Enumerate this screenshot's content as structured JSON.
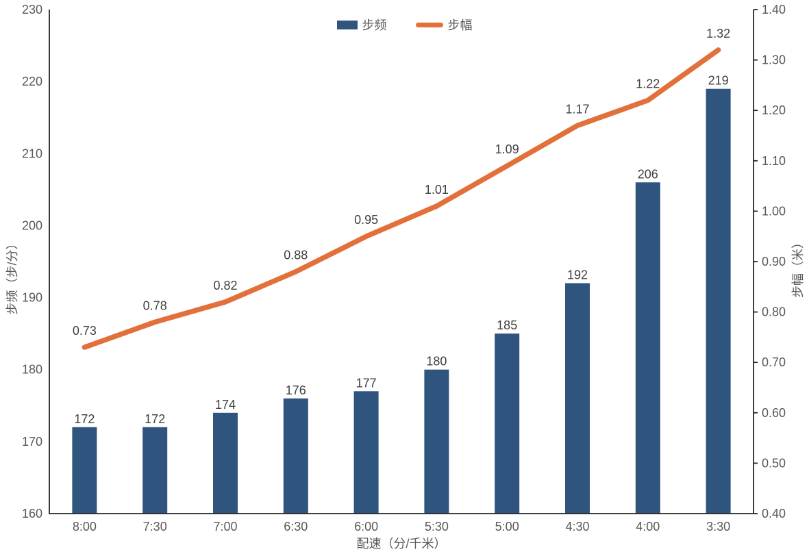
{
  "chart_data": {
    "type": "bar",
    "subtype": "bar-line-combo",
    "title": "",
    "categories": [
      "8:00",
      "7:30",
      "7:00",
      "6:30",
      "6:00",
      "5:30",
      "5:00",
      "4:30",
      "4:00",
      "3:30"
    ],
    "series": [
      {
        "name": "步频",
        "type": "bar",
        "axis": "left",
        "color": "#2F547E",
        "values": [
          172,
          172,
          174,
          176,
          177,
          180,
          185,
          192,
          206,
          219
        ],
        "labels": [
          "172",
          "172",
          "174",
          "176",
          "177",
          "180",
          "185",
          "192",
          "206",
          "219"
        ]
      },
      {
        "name": "步幅",
        "type": "line",
        "axis": "right",
        "color": "#E2703A",
        "values": [
          0.73,
          0.78,
          0.82,
          0.88,
          0.95,
          1.01,
          1.09,
          1.17,
          1.22,
          1.32
        ],
        "labels": [
          "0.73",
          "0.78",
          "0.82",
          "0.88",
          "0.95",
          "1.01",
          "1.09",
          "1.17",
          "1.22",
          "1.32"
        ]
      }
    ],
    "xlabel": "配速（分/千米）",
    "ylabel_left": "步频（步/分）",
    "ylabel_right": "步幅（米）",
    "y_left": {
      "min": 160,
      "max": 230,
      "step": 10,
      "ticks": [
        "160",
        "170",
        "180",
        "190",
        "200",
        "210",
        "220",
        "230"
      ]
    },
    "y_right": {
      "min": 0.4,
      "max": 1.4,
      "step": 0.1,
      "ticks": [
        "0.40",
        "0.50",
        "0.60",
        "0.70",
        "0.80",
        "0.90",
        "1.00",
        "1.10",
        "1.20",
        "1.30",
        "1.40"
      ]
    },
    "legend": {
      "position": "top",
      "items": [
        "步频",
        "步幅"
      ]
    },
    "grid": false,
    "colors": {
      "bar": "#2F547E",
      "line": "#E2703A",
      "axis": "#262626",
      "tick_text": "#595959",
      "data_label_text": "#404040",
      "background": "#FFFFFF"
    }
  }
}
